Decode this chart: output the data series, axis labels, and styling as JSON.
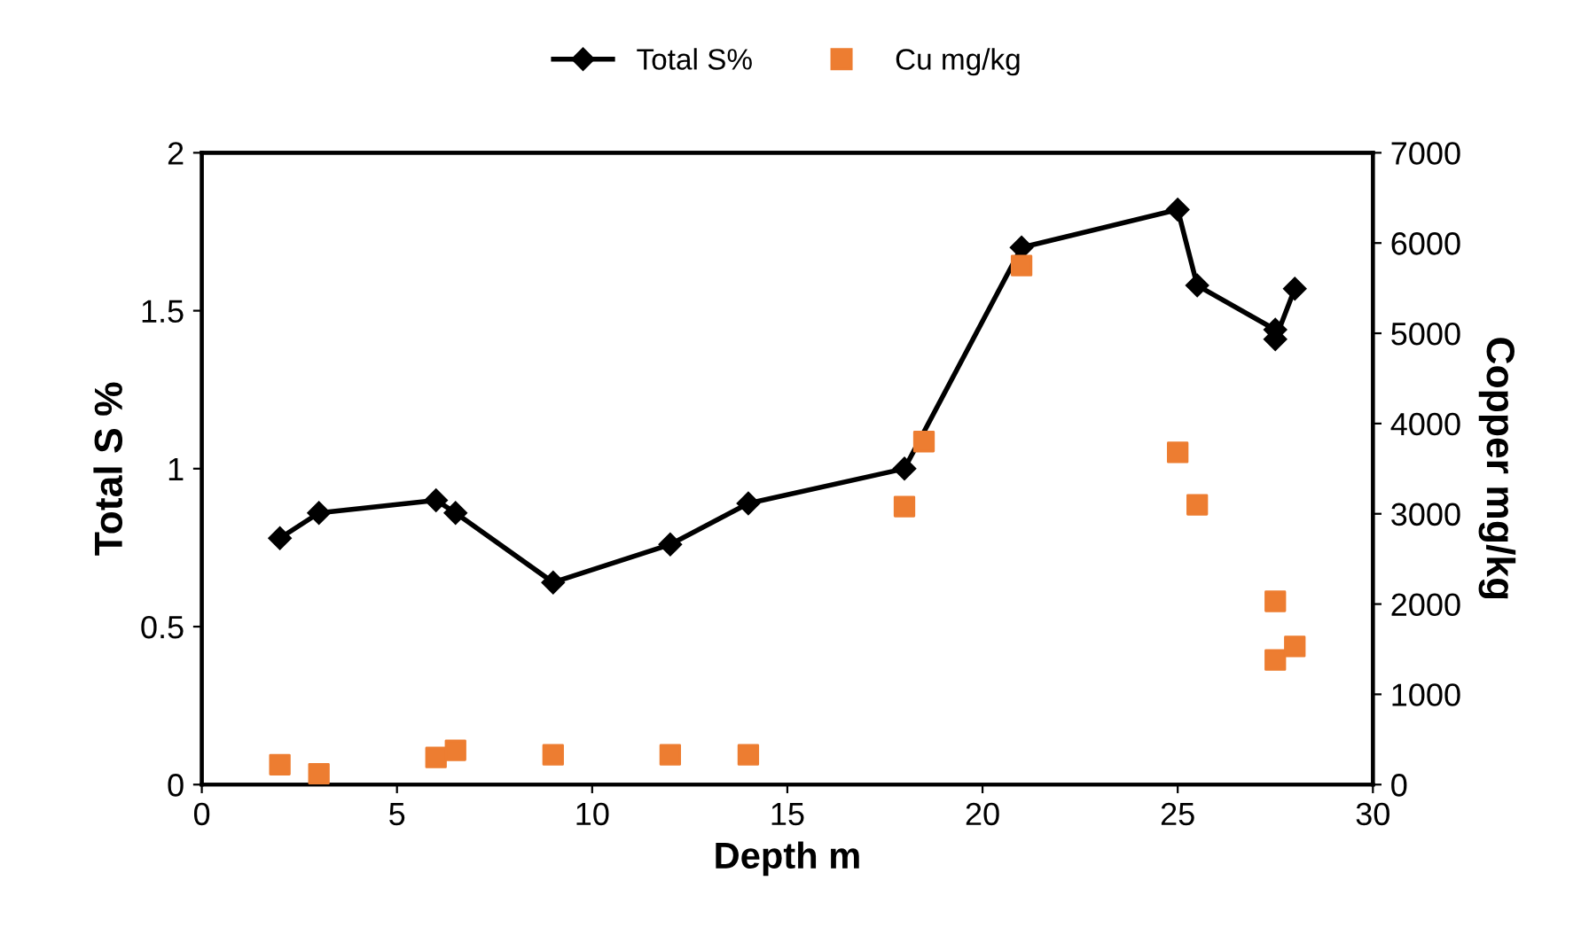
{
  "chart_data": {
    "type": "line",
    "xlabel": "Depth m",
    "ylabel": "Total S %",
    "y2label": "Copper mg/kg",
    "xlim": [
      0,
      30
    ],
    "xticks": [
      0,
      5,
      10,
      15,
      20,
      25,
      30
    ],
    "ylim": [
      0,
      2
    ],
    "yticks": [
      0,
      0.5,
      1,
      1.5,
      2
    ],
    "y2lim": [
      0,
      7000
    ],
    "y2ticks": [
      0,
      1000,
      2000,
      3000,
      4000,
      5000,
      6000,
      7000
    ],
    "legend": "top",
    "grid": false,
    "series": [
      {
        "name": "Total S%",
        "color": "#000000",
        "marker": "diamond",
        "line_style": "solid",
        "x": [
          2,
          3,
          6,
          6.5,
          9,
          12,
          14,
          18,
          21,
          25,
          25.5,
          27.5,
          27.5,
          28
        ],
        "values": [
          0.78,
          0.86,
          0.9,
          0.86,
          0.64,
          0.76,
          0.89,
          1.0,
          1.7,
          1.82,
          1.58,
          1.44,
          1.41,
          1.57
        ]
      },
      {
        "name": "Cu mg/kg",
        "type": "scatter",
        "axis": "y2",
        "color": "#ed7d31",
        "marker": "square",
        "x": [
          2,
          3,
          6,
          6.5,
          9,
          12,
          14,
          18,
          18.5,
          21,
          25,
          25.5,
          27.5,
          27.5,
          28
        ],
        "values": [
          220,
          120,
          300,
          380,
          330,
          330,
          330,
          3080,
          3800,
          5750,
          3680,
          3100,
          2030,
          1380,
          1530
        ]
      }
    ]
  }
}
